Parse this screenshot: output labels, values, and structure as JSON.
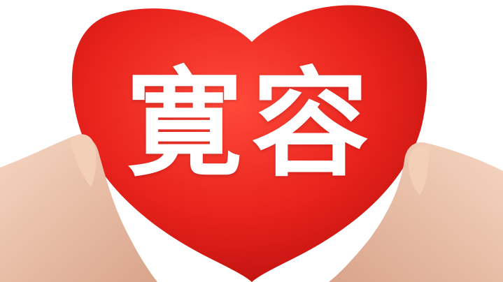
{
  "photo": {
    "caption": "寛容",
    "subject": "red-heart-held-in-hands"
  },
  "colors": {
    "background": "#ffffff",
    "heart_main": "#e8221c",
    "heart_dark": "#b50f0c",
    "heart_light": "#ff4a3a",
    "skin": "#f1c9b0",
    "skin_shadow": "#d9a48a",
    "caption": "#ffffff"
  }
}
